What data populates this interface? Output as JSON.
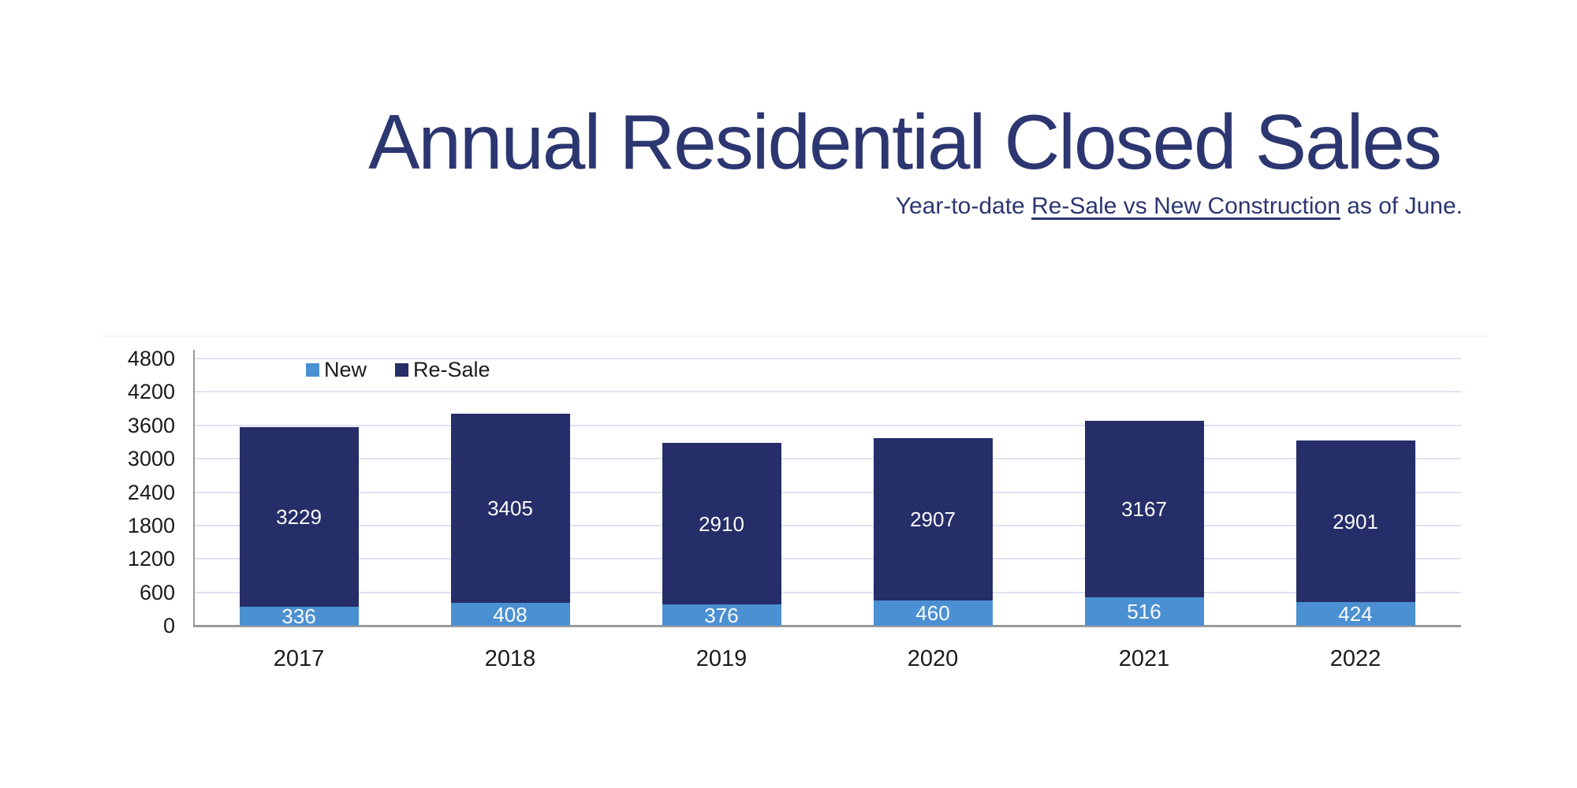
{
  "title": "Annual Residential Closed Sales",
  "subtitle": {
    "prefix": "Year-to-date ",
    "underlined": "Re-Sale vs New Construction",
    "suffix": " as of June."
  },
  "colors": {
    "title_navy": "#2c3671",
    "bar_new_blue": "#4b90d2",
    "bar_resale_navy": "#252e68",
    "gridline": "#dde3f0",
    "axis_gray": "#9a9a9a",
    "tick_text": "#1c1c1c",
    "value_label_white": "#fafafa"
  },
  "chart_data": {
    "type": "bar",
    "stacked": true,
    "title": "Annual Residential Closed Sales",
    "xlabel": "",
    "ylabel": "",
    "categories": [
      "2017",
      "2018",
      "2019",
      "2020",
      "2021",
      "2022"
    ],
    "series": [
      {
        "name": "New",
        "color": "#4b90d2",
        "values": [
          336,
          408,
          376,
          460,
          516,
          424
        ]
      },
      {
        "name": "Re-Sale",
        "color": "#252e68",
        "values": [
          3229,
          3405,
          2910,
          2907,
          3167,
          2901
        ]
      }
    ],
    "totals": [
      3565,
      3813,
      3286,
      3367,
      3683,
      3325
    ],
    "ylim": [
      0,
      4800
    ],
    "ytick_step": 600,
    "yticks": [
      "0",
      "600",
      "1200",
      "1800",
      "2400",
      "3000",
      "3600",
      "4200",
      "4800"
    ],
    "grid": true,
    "value_labels": true,
    "legend_position": "top-left-inside",
    "legend": [
      "New",
      "Re-Sale"
    ]
  }
}
